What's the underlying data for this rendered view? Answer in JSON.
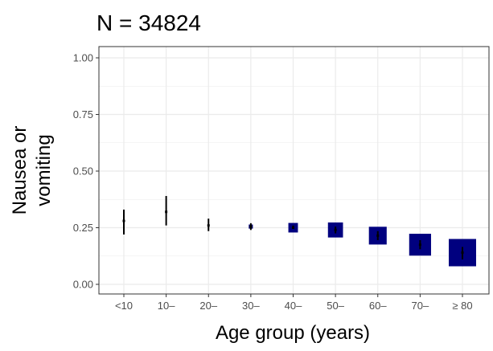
{
  "chart_data": {
    "type": "scatter",
    "title": "N = 34824",
    "xlabel": "Age group (years)",
    "ylabel_lines": [
      "Nausea or",
      "vomiting"
    ],
    "categories": [
      "<10",
      "10–",
      "20–",
      "30–",
      "40–",
      "50–",
      "60–",
      "70–",
      "≥ 80"
    ],
    "ylim": [
      0,
      1
    ],
    "yticks": [
      "0.00",
      "0.25",
      "0.50",
      "0.75",
      "1.00"
    ],
    "grid": true,
    "point_color": "#00007f",
    "series": [
      {
        "estimate": [
          0.28,
          0.32,
          0.26,
          0.255,
          0.25,
          0.24,
          0.215,
          0.175,
          0.14
        ],
        "lower": [
          0.22,
          0.26,
          0.235,
          0.24,
          0.245,
          0.225,
          0.195,
          0.155,
          0.11
        ],
        "upper": [
          0.33,
          0.39,
          0.29,
          0.27,
          0.26,
          0.255,
          0.235,
          0.195,
          0.165
        ],
        "relative_weight": [
          0.0,
          0.0,
          0.05,
          0.15,
          0.35,
          0.55,
          0.65,
          0.8,
          1.0
        ]
      }
    ]
  }
}
